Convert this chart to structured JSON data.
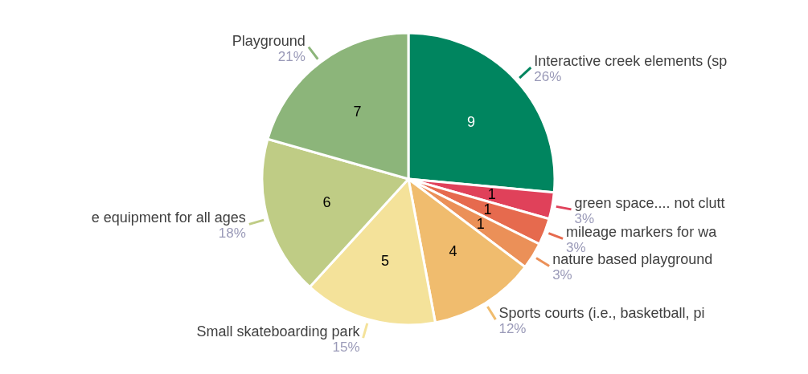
{
  "chart_data": {
    "type": "pie",
    "categories": [
      "Interactive creek elements (sp",
      "green space.... not clutt",
      "mileage markers for wa",
      "nature based playground",
      "Sports courts (i.e., basketball, pi",
      "Small skateboarding park",
      "e equipment for all ages",
      "Playground"
    ],
    "values": [
      9,
      1,
      1,
      1,
      4,
      5,
      6,
      7
    ],
    "colors": [
      "#00855f",
      "#e0415a",
      "#e66a4e",
      "#eb9058",
      "#f0bc6e",
      "#f4e29a",
      "#bfcc85",
      "#8cb57a"
    ],
    "annotations": [
      "26%",
      "3%",
      "3%",
      "3%",
      "12%",
      "15%",
      "18%",
      "21%"
    ],
    "data_labels": true,
    "legend": false
  }
}
